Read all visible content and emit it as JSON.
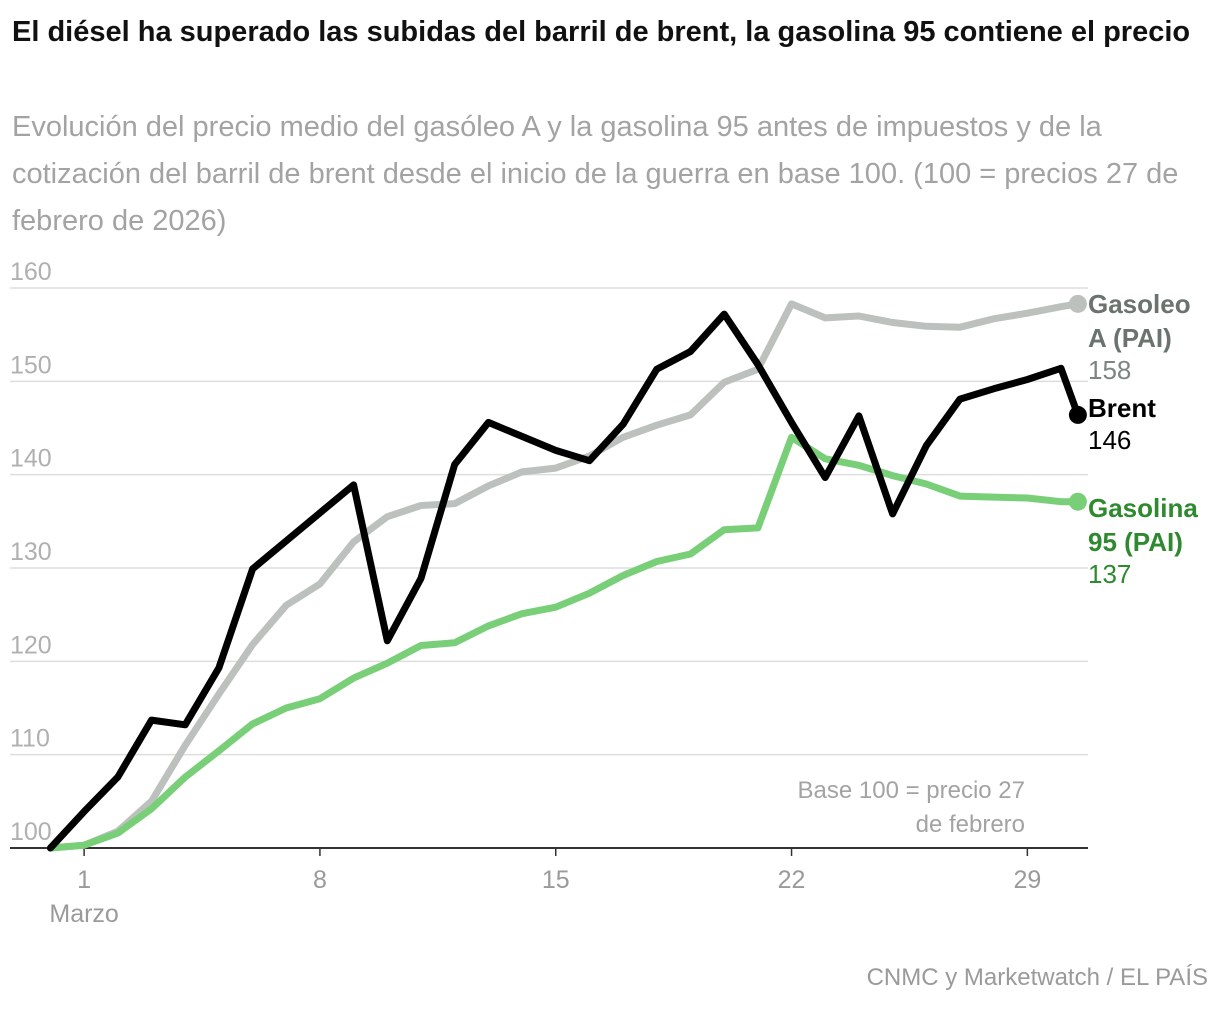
{
  "title": "El diésel ha superado las subidas del barril de brent, la gasolina 95 contiene el precio",
  "subtitle": "Evolución del precio medio del gasóleo A y la gasolina 95 antes de impuestos y de la cotización del barril de brent desde el inicio de la guerra en base 100. (100 = precios 27 de febrero de 2026)",
  "source": "CNMC y Marketwatch / EL PAÍS",
  "chart_data": {
    "type": "line",
    "title": "El diésel ha superado las subidas del barril de brent, la gasolina 95 contiene el precio",
    "xlabel": "",
    "ylabel": "",
    "xlim": [
      -1.2,
      30.8
    ],
    "ylim": [
      100,
      160
    ],
    "yticks": [
      100,
      110,
      120,
      130,
      140,
      150,
      160
    ],
    "xticks": [
      {
        "value": 1,
        "label": "1",
        "sublabel": "Marzo"
      },
      {
        "value": 8,
        "label": "8",
        "sublabel": ""
      },
      {
        "value": 15,
        "label": "15",
        "sublabel": ""
      },
      {
        "value": 22,
        "label": "22",
        "sublabel": ""
      },
      {
        "value": 29,
        "label": "29",
        "sublabel": ""
      }
    ],
    "grid": true,
    "annotation": [
      "Base 100 = precio 27",
      "de febrero"
    ],
    "series": [
      {
        "name": "Gasoleo A (PAI)",
        "label_lines": [
          "Gasoleo",
          "A (PAI)"
        ],
        "last_value_label": "158",
        "color": "#bdc1be",
        "label_color": "#6a736e",
        "value_color": "#7d8580",
        "points": [
          [
            0,
            100
          ],
          [
            1,
            100.3
          ],
          [
            2,
            101.8
          ],
          [
            3,
            105
          ],
          [
            4,
            111
          ],
          [
            5,
            116.5
          ],
          [
            6,
            121.8
          ],
          [
            7,
            126
          ],
          [
            8,
            128.3
          ],
          [
            9,
            132.8
          ],
          [
            10,
            135.5
          ],
          [
            11,
            136.7
          ],
          [
            12,
            136.9
          ],
          [
            13,
            138.8
          ],
          [
            14,
            140.3
          ],
          [
            15,
            140.7
          ],
          [
            16,
            142
          ],
          [
            17,
            144
          ],
          [
            18,
            145.3
          ],
          [
            19,
            146.4
          ],
          [
            20,
            149.9
          ],
          [
            21,
            151.3
          ],
          [
            22,
            158.3
          ],
          [
            23,
            156.8
          ],
          [
            24,
            157
          ],
          [
            25,
            156.3
          ],
          [
            26,
            155.9
          ],
          [
            27,
            155.8
          ],
          [
            28,
            156.7
          ],
          [
            29,
            157.3
          ],
          [
            30,
            158
          ],
          [
            30.5,
            158.3
          ]
        ]
      },
      {
        "name": "Gasolina 95 (PAI)",
        "label_lines": [
          "Gasolina",
          "95 (PAI)"
        ],
        "last_value_label": "137",
        "color": "#78cf78",
        "label_color": "#2f8a2f",
        "value_color": "#2f8a2f",
        "points": [
          [
            0,
            100
          ],
          [
            1,
            100.3
          ],
          [
            2,
            101.6
          ],
          [
            3,
            104.2
          ],
          [
            4,
            107.6
          ],
          [
            5,
            110.4
          ],
          [
            6,
            113.3
          ],
          [
            7,
            115
          ],
          [
            8,
            116
          ],
          [
            9,
            118.2
          ],
          [
            10,
            119.8
          ],
          [
            11,
            121.7
          ],
          [
            12,
            122
          ],
          [
            13,
            123.8
          ],
          [
            14,
            125.1
          ],
          [
            15,
            125.8
          ],
          [
            16,
            127.3
          ],
          [
            17,
            129.2
          ],
          [
            18,
            130.7
          ],
          [
            19,
            131.5
          ],
          [
            20,
            134.1
          ],
          [
            21,
            134.3
          ],
          [
            22,
            144
          ],
          [
            23,
            141.7
          ],
          [
            24,
            141
          ],
          [
            25,
            139.9
          ],
          [
            26,
            139
          ],
          [
            27,
            137.7
          ],
          [
            28,
            137.6
          ],
          [
            29,
            137.5
          ],
          [
            30,
            137.1
          ],
          [
            30.5,
            137.1
          ]
        ]
      },
      {
        "name": "Brent",
        "label_lines": [
          "Brent"
        ],
        "last_value_label": "146",
        "color": "#000000",
        "label_color": "#000000",
        "value_color": "#000000",
        "points": [
          [
            0,
            100
          ],
          [
            1,
            103.9
          ],
          [
            2,
            107.6
          ],
          [
            3,
            113.7
          ],
          [
            4,
            113.2
          ],
          [
            5,
            119.3
          ],
          [
            6,
            129.9
          ],
          [
            7,
            132.9
          ],
          [
            8,
            135.9
          ],
          [
            9,
            138.9
          ],
          [
            10,
            122.2
          ],
          [
            11,
            128.9
          ],
          [
            12,
            141.1
          ],
          [
            13,
            145.6
          ],
          [
            14,
            144.1
          ],
          [
            15,
            142.6
          ],
          [
            16,
            141.5
          ],
          [
            17,
            145.4
          ],
          [
            18,
            151.3
          ],
          [
            19,
            153.2
          ],
          [
            20,
            157.2
          ],
          [
            21,
            151.8
          ],
          [
            22,
            145.6
          ],
          [
            23,
            139.7
          ],
          [
            24,
            146.3
          ],
          [
            25,
            135.8
          ],
          [
            26,
            143.1
          ],
          [
            27,
            148.1
          ],
          [
            28,
            149.2
          ],
          [
            29,
            150.2
          ],
          [
            30,
            151.4
          ],
          [
            30.5,
            146.4
          ]
        ]
      }
    ]
  }
}
